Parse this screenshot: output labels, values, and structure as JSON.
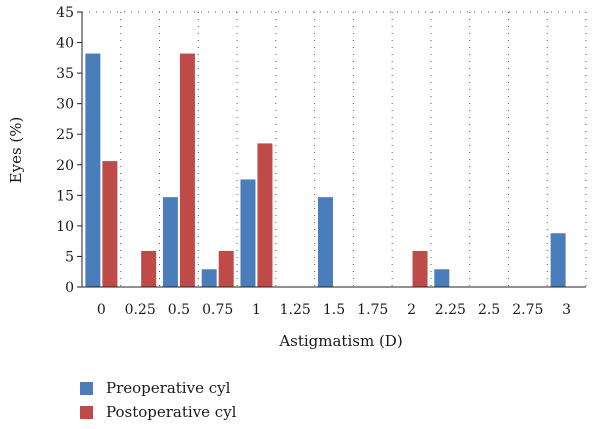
{
  "chart_data": {
    "type": "bar",
    "xlabel": "Astigmatism (D)",
    "ylabel": "Eyes (%)",
    "ylim": [
      0,
      45
    ],
    "yticks": [
      0,
      5,
      10,
      15,
      20,
      25,
      30,
      35,
      40,
      45
    ],
    "categories": [
      "0",
      "0.25",
      "0.5",
      "0.75",
      "1",
      "1.25",
      "1.5",
      "1.75",
      "2",
      "2.25",
      "2.5",
      "2.75",
      "3"
    ],
    "series": [
      {
        "name": "Preoperative cyl",
        "color": "#4a7ebb",
        "values": [
          38.2,
          0,
          14.7,
          2.9,
          17.6,
          0,
          14.7,
          0,
          0,
          2.9,
          0,
          0,
          8.8
        ]
      },
      {
        "name": "Postoperative cyl",
        "color": "#be4b48",
        "values": [
          20.6,
          5.9,
          38.2,
          5.9,
          23.5,
          0,
          0,
          0,
          5.9,
          0,
          0,
          0,
          0
        ]
      }
    ],
    "grid": "dotted-vertical",
    "legend_position": "bottom-left"
  }
}
